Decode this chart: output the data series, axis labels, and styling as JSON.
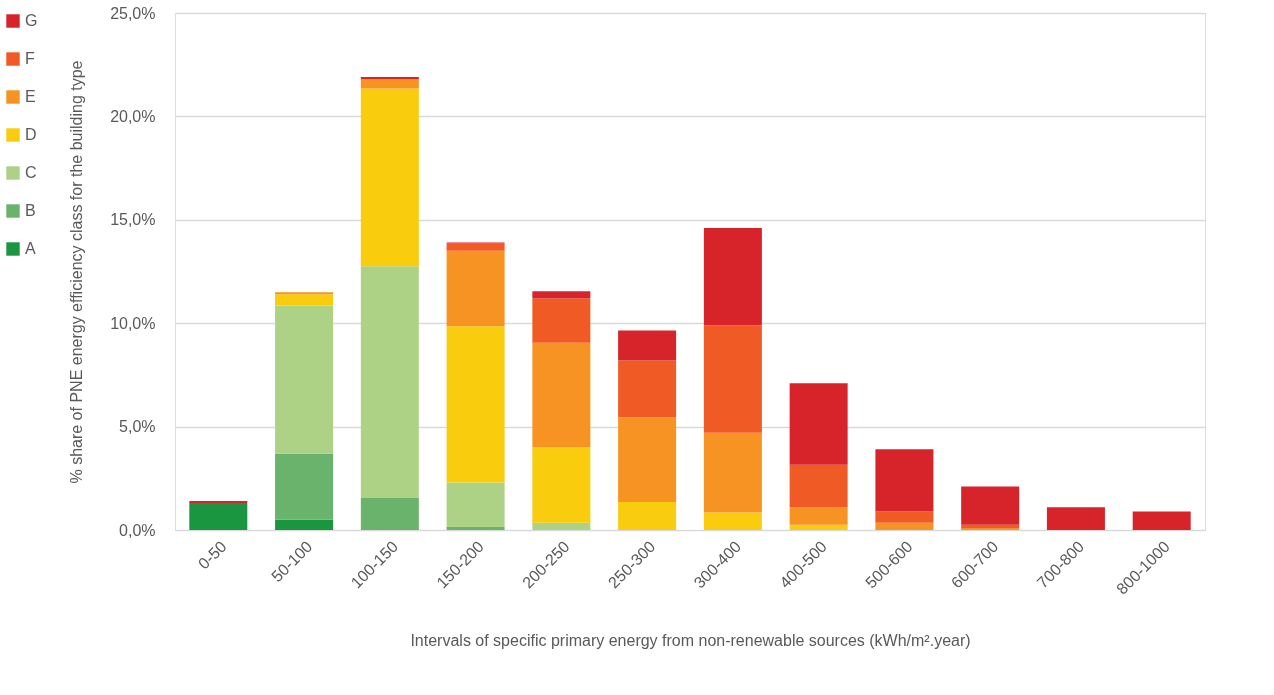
{
  "chart_data": {
    "type": "bar",
    "stacked": true,
    "xlabel": "Intervals of specific primary energy from non-renewable sources (kWh/m².year)",
    "ylabel": "% share of  PNE energy efficiency class for the building type",
    "categories": [
      "0-50",
      "50-100",
      "100-150",
      "150-200",
      "200-250",
      "250-300",
      "300-400",
      "400-500",
      "500-600",
      "600-700",
      "700-800",
      "800-1000"
    ],
    "series": [
      {
        "name": "A",
        "color": "#1a9641",
        "values": [
          1.3,
          0.5,
          0,
          0,
          0,
          0,
          0,
          0,
          0,
          0,
          0,
          0
        ]
      },
      {
        "name": "B",
        "color": "#6ab36c",
        "values": [
          0,
          3.2,
          1.55,
          0.15,
          0,
          0,
          0,
          0,
          0,
          0,
          0,
          0
        ]
      },
      {
        "name": "C",
        "color": "#aed285",
        "values": [
          0,
          7.15,
          11.2,
          2.15,
          0.35,
          0,
          0,
          0,
          0,
          0,
          0,
          0
        ]
      },
      {
        "name": "D",
        "color": "#f9cc0d",
        "values": [
          0,
          0.55,
          8.6,
          7.55,
          3.65,
          1.35,
          0.85,
          0.25,
          0,
          0,
          0,
          0
        ]
      },
      {
        "name": "E",
        "color": "#f69322",
        "values": [
          0,
          0.1,
          0.45,
          3.65,
          5.05,
          4.1,
          3.85,
          0.85,
          0.35,
          0.1,
          0,
          0
        ]
      },
      {
        "name": "F",
        "color": "#f05a24",
        "values": [
          0,
          0,
          0,
          0.35,
          2.15,
          2.75,
          5.2,
          2.05,
          0.55,
          0.15,
          0,
          0
        ]
      },
      {
        "name": "G",
        "color": "#d7232a",
        "values": [
          0.1,
          0,
          0.1,
          0.05,
          0.35,
          1.45,
          4.7,
          3.95,
          3.0,
          1.85,
          1.1,
          0.9
        ]
      }
    ],
    "ylim": [
      0,
      25
    ],
    "yticks": [
      {
        "value": 0,
        "label": "0,0%"
      },
      {
        "value": 5,
        "label": "5,0%"
      },
      {
        "value": 10,
        "label": "10,0%"
      },
      {
        "value": 15,
        "label": "15,0%"
      },
      {
        "value": 20,
        "label": "20,0%"
      },
      {
        "value": 25,
        "label": "25,0%"
      }
    ],
    "grid": "y",
    "legend": "left"
  }
}
